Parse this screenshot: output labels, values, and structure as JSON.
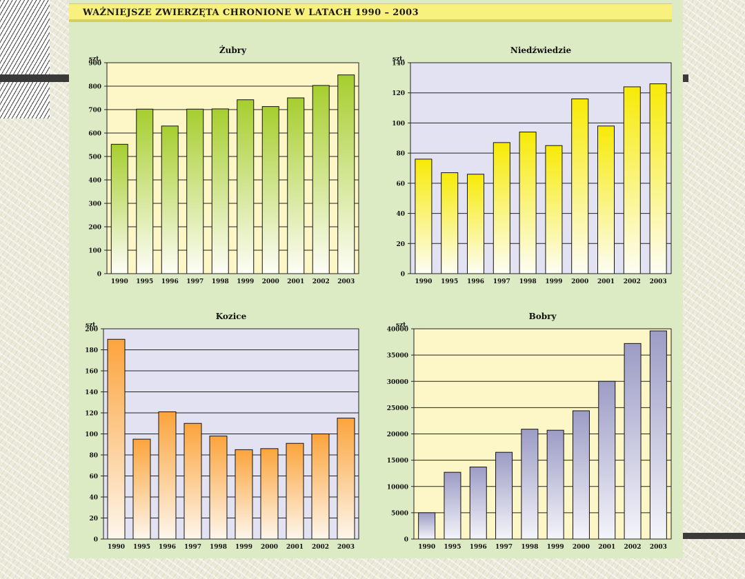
{
  "page": {
    "title": "WAŻNIEJSZE  ZWIERZĘTA  CHRONIONE  W  LATACH  1990 – 2003"
  },
  "chart_data": [
    {
      "id": "zubry",
      "type": "bar",
      "title": "Żubry",
      "ylabel": "szt.",
      "categories": [
        "1990",
        "1995",
        "1996",
        "1997",
        "1998",
        "1999",
        "2000",
        "2001",
        "2002",
        "2003"
      ],
      "values": [
        552,
        702,
        630,
        702,
        703,
        742,
        713,
        750,
        803,
        848
      ],
      "ylim": [
        0,
        900
      ],
      "yticks": [
        0,
        100,
        200,
        300,
        400,
        500,
        600,
        700,
        800,
        900
      ],
      "plot_bg": "#fdf6c6",
      "bar_top": "#a6ce2e",
      "bar_bottom": "#fdfdf6"
    },
    {
      "id": "niedzwiedzie",
      "type": "bar",
      "title": "Niedźwiedzie",
      "ylabel": "szt.",
      "categories": [
        "1990",
        "1995",
        "1996",
        "1997",
        "1998",
        "1999",
        "2000",
        "2001",
        "2002",
        "2003"
      ],
      "values": [
        76,
        67,
        66,
        87,
        94,
        85,
        116,
        98,
        124,
        126
      ],
      "ylim": [
        0,
        140
      ],
      "yticks": [
        0,
        20,
        40,
        60,
        80,
        100,
        120,
        140
      ],
      "plot_bg": "#e2e2f2",
      "bar_top": "#f7ea06",
      "bar_bottom": "#fdfdf4"
    },
    {
      "id": "kozice",
      "type": "bar",
      "title": "Kozice",
      "ylabel": "szt.",
      "categories": [
        "1990",
        "1995",
        "1996",
        "1997",
        "1998",
        "1999",
        "2000",
        "2001",
        "2002",
        "2003"
      ],
      "values": [
        190,
        95,
        121,
        110,
        98,
        85,
        86,
        91,
        100,
        115
      ],
      "ylim": [
        0,
        200
      ],
      "yticks": [
        0,
        20,
        40,
        60,
        80,
        100,
        120,
        140,
        160,
        180,
        200
      ],
      "plot_bg": "#e2e2f2",
      "bar_top": "#fca43c",
      "bar_bottom": "#fdf6ec"
    },
    {
      "id": "bobry",
      "type": "bar",
      "title": "Bobry",
      "ylabel": "szt.",
      "categories": [
        "1990",
        "1995",
        "1996",
        "1997",
        "1998",
        "1999",
        "2000",
        "2001",
        "2002",
        "2003"
      ],
      "values": [
        5000,
        12700,
        13700,
        16500,
        20900,
        20700,
        24400,
        30000,
        37200,
        39600
      ],
      "ylim": [
        0,
        40000
      ],
      "yticks": [
        0,
        5000,
        10000,
        15000,
        20000,
        25000,
        30000,
        35000,
        40000
      ],
      "plot_bg": "#fdf6c6",
      "bar_top": "#9c9cc6",
      "bar_bottom": "#f4f4fa"
    }
  ]
}
